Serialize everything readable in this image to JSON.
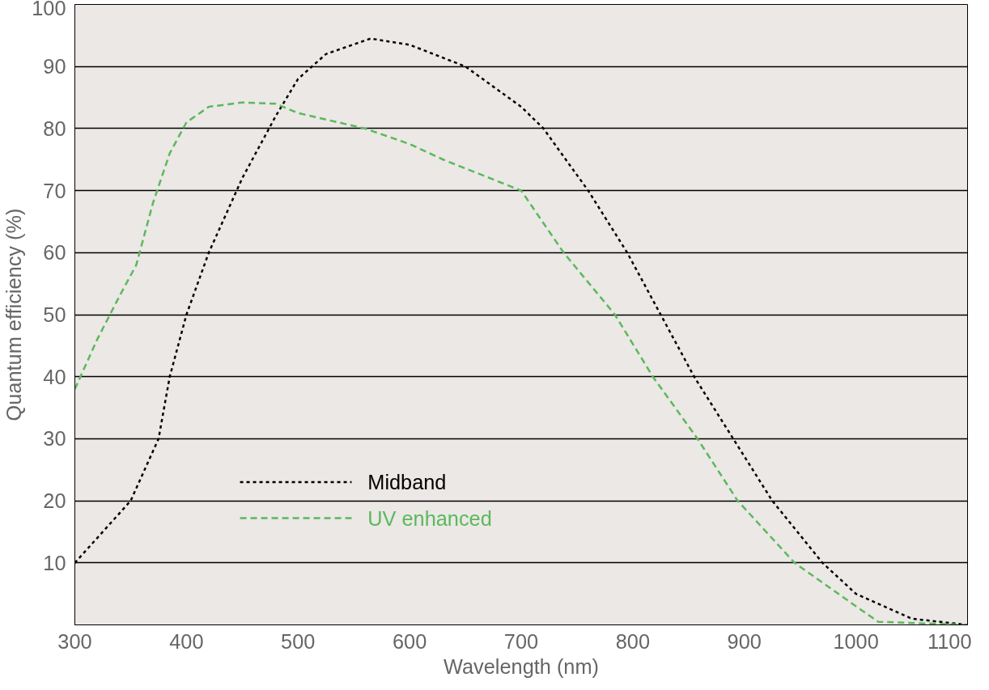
{
  "chart_data": {
    "type": "line",
    "xlabel": "Wavelength (nm)",
    "ylabel": "Quantum efficiency (%)",
    "xlim": [
      300,
      1100
    ],
    "xticks": [
      300,
      400,
      500,
      600,
      700,
      800,
      900,
      1000,
      1100
    ],
    "ylim": [
      0,
      100
    ],
    "yticks": [
      10,
      20,
      30,
      40,
      50,
      60,
      70,
      80,
      90,
      100
    ],
    "grid": "y",
    "legend": "bottom left",
    "marker": "none",
    "series": [
      {
        "name": "Midband",
        "color": "#000000",
        "line_style": "dotted",
        "x": [
          300,
          350,
          375,
          385,
          400,
          420,
          450,
          480,
          500,
          525,
          565,
          600,
          650,
          700,
          720,
          760,
          795,
          825,
          855,
          890,
          925,
          970,
          1000,
          1050,
          1100
        ],
        "values": [
          10,
          20,
          30,
          40,
          50,
          60,
          72,
          82,
          88,
          92,
          94.5,
          93.5,
          90,
          83.5,
          80,
          70,
          60,
          50,
          40,
          30,
          20,
          10,
          5,
          1,
          0
        ]
      },
      {
        "name": "UV enhanced",
        "color": "#5cb85c",
        "line_style": "dashed",
        "x": [
          300,
          320,
          340,
          355,
          370,
          385,
          400,
          420,
          450,
          480,
          500,
          560,
          600,
          630,
          700,
          738,
          784,
          818,
          858,
          894,
          945,
          1000,
          1020,
          1100
        ],
        "values": [
          38,
          46,
          53,
          58,
          68,
          76,
          81,
          83.5,
          84.2,
          84,
          82.5,
          80,
          77.5,
          75,
          70,
          60,
          50,
          40,
          30,
          20,
          10,
          3,
          0.5,
          0
        ]
      }
    ]
  }
}
